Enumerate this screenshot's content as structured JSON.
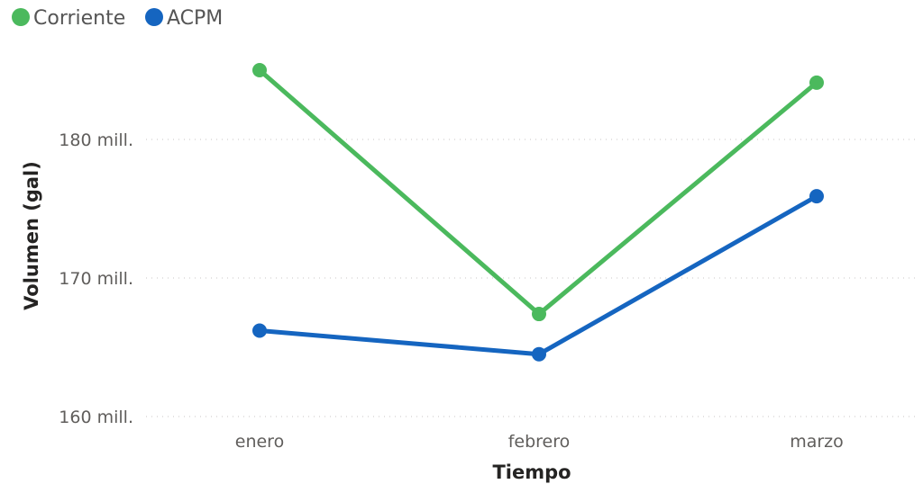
{
  "chart_data": {
    "type": "line",
    "categories": [
      "enero",
      "febrero",
      "marzo"
    ],
    "series": [
      {
        "name": "Corriente",
        "color": "#4bb95d",
        "values": [
          185000000,
          167400000,
          184100000
        ]
      },
      {
        "name": "ACPM",
        "color": "#1565c0",
        "values": [
          166200000,
          164500000,
          175900000
        ]
      }
    ],
    "xlabel": "Tiempo",
    "ylabel": "Volumen (gal)",
    "ylim": [
      160000000,
      190000000
    ],
    "yticks": [
      {
        "value": 160000000,
        "label": "160 mill."
      },
      {
        "value": 170000000,
        "label": "170 mill."
      },
      {
        "value": 180000000,
        "label": "180 mill."
      }
    ],
    "grid": true,
    "legend_position": "top-left"
  }
}
